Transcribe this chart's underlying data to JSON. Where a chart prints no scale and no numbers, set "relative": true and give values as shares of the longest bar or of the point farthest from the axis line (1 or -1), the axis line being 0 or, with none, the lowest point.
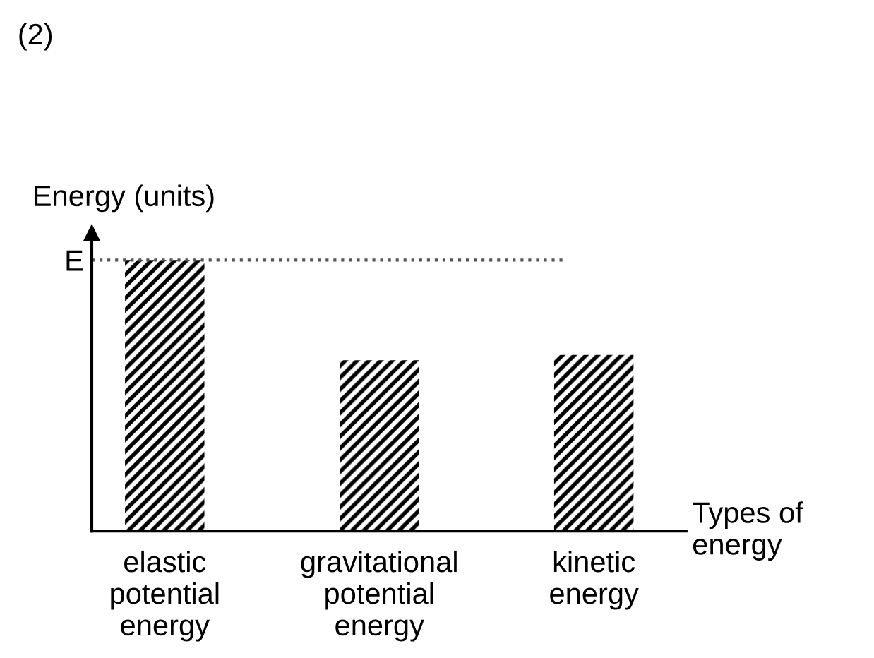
{
  "chart_data": {
    "type": "bar",
    "title": "(2)",
    "ylabel": "Energy (units)",
    "xlabel": "Types of\nenergy",
    "categories": [
      "elastic\npotential\nenergy",
      "gravitational\npotential\nenergy",
      "kinetic\nenergy"
    ],
    "values": [
      1,
      0.63,
      0.65
    ],
    "color": "#000000",
    "relative": true,
    "ref_lines": [
      {
        "axis": "y",
        "value": 1,
        "label": "E",
        "line_style": "dotted",
        "color": "#555555"
      }
    ],
    "grid": false,
    "legend": false
  }
}
